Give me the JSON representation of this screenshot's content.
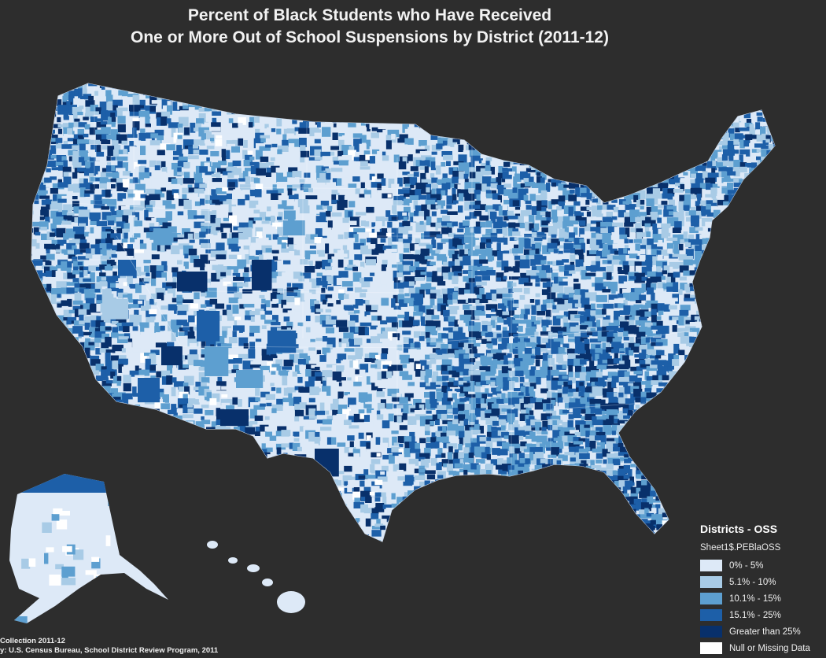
{
  "title_line1": "Percent of Black Students who Have Received",
  "title_line2": "One or More Out of School Suspensions by District (2011-12)",
  "legend": {
    "title": "Districts - OSS",
    "field": "Sheet1$.PEBlaOSS",
    "items": [
      {
        "label": "0% - 5%",
        "color": "#dde9f7"
      },
      {
        "label": "5.1% - 10%",
        "color": "#a8cbe6"
      },
      {
        "label": "10.1% - 15%",
        "color": "#5d9fd0"
      },
      {
        "label": "15.1% - 25%",
        "color": "#1d5fa8"
      },
      {
        "label": "Greater than 25%",
        "color": "#08306b"
      },
      {
        "label": "Null or Missing Data",
        "color": "#ffffff"
      }
    ]
  },
  "source_line1": "Collection 2011-12",
  "source_line2": "y: U.S. Census Bureau, School District Review Program, 2011"
}
